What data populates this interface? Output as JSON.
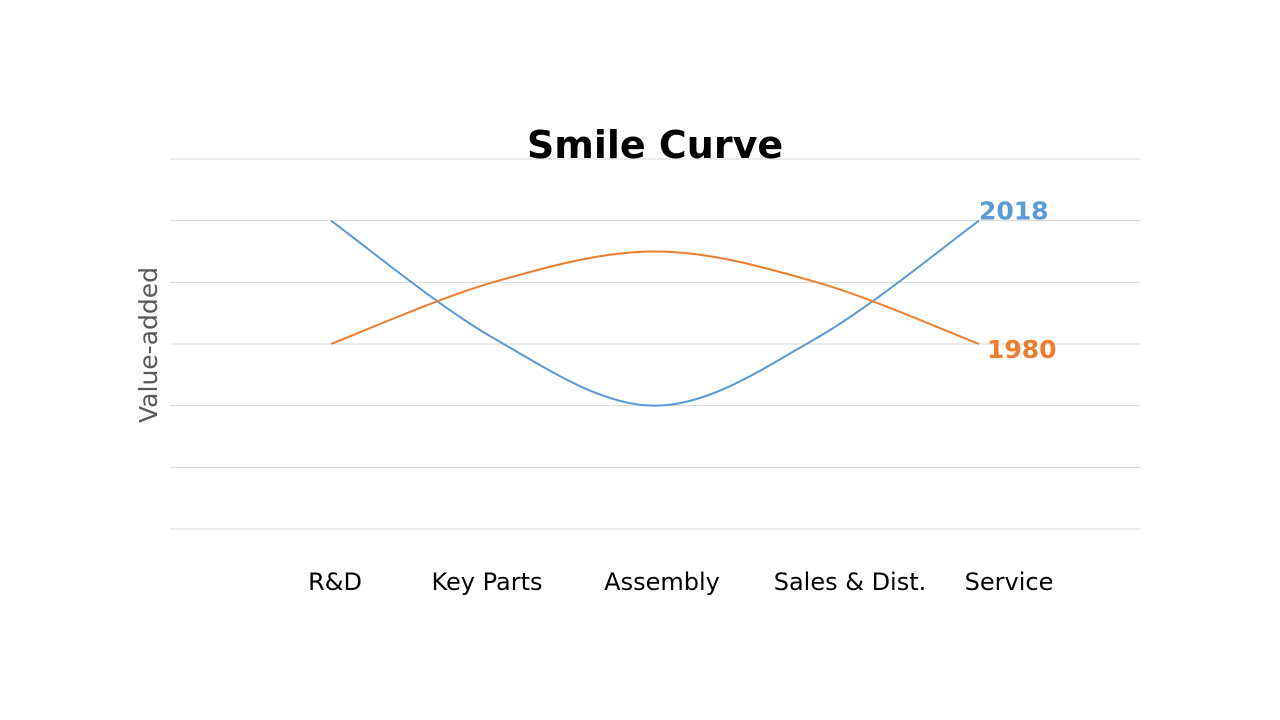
{
  "chart_data": {
    "type": "line",
    "title": "Smile Curve",
    "xlabel": "",
    "ylabel": "Value-added",
    "categories": [
      "R&D",
      "Key Parts",
      "Assembly",
      "Sales & Dist.",
      "Service"
    ],
    "ylim": [
      0,
      6
    ],
    "grid": true,
    "smooth": true,
    "legend": "none",
    "series": [
      {
        "name": "2018",
        "values": [
          5,
          3.1,
          2,
          3.1,
          5
        ],
        "color": "#5b9bd5"
      },
      {
        "name": "1980",
        "values": [
          3,
          4,
          4.5,
          4,
          3
        ],
        "color": "#ed7d31"
      }
    ]
  }
}
